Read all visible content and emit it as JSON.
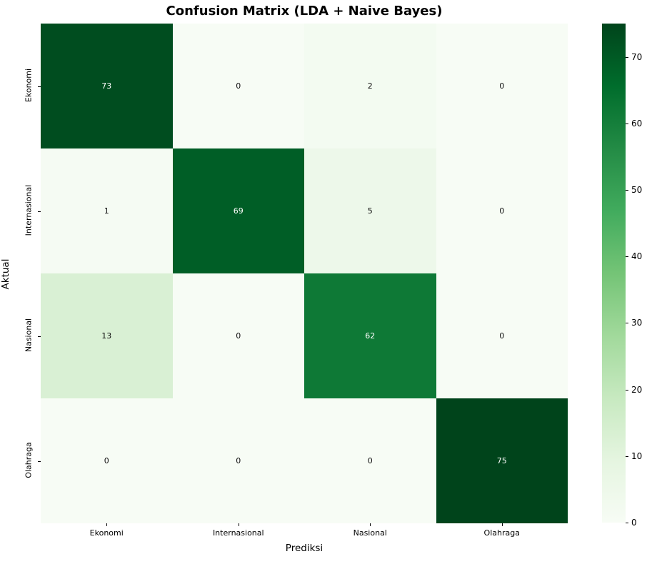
{
  "chart_data": {
    "type": "heatmap",
    "title": "Confusion Matrix (LDA + Naive Bayes)",
    "xlabel": "Prediksi",
    "ylabel": "Aktual",
    "x_categories": [
      "Ekonomi",
      "Internasional",
      "Nasional",
      "Olahraga"
    ],
    "y_categories": [
      "Ekonomi",
      "Internasional",
      "Nasional",
      "Olahraga"
    ],
    "matrix": [
      [
        73,
        0,
        2,
        0
      ],
      [
        1,
        69,
        5,
        0
      ],
      [
        13,
        0,
        62,
        0
      ],
      [
        0,
        0,
        0,
        75
      ]
    ],
    "vmin": 0,
    "vmax": 75,
    "colormap": "Greens",
    "colormap_stops": [
      "#f7fcf5",
      "#e5f5e0",
      "#c7e9c0",
      "#a1d99b",
      "#74c476",
      "#41ab5d",
      "#238b45",
      "#006d2c",
      "#00441b"
    ],
    "colorbar_ticks": [
      0,
      10,
      20,
      30,
      40,
      50,
      60,
      70
    ],
    "colorbar_position": "right",
    "annotation_color_light_cell": "#0d0d0d",
    "annotation_color_dark_cell": "#ffffff",
    "grid": false
  }
}
